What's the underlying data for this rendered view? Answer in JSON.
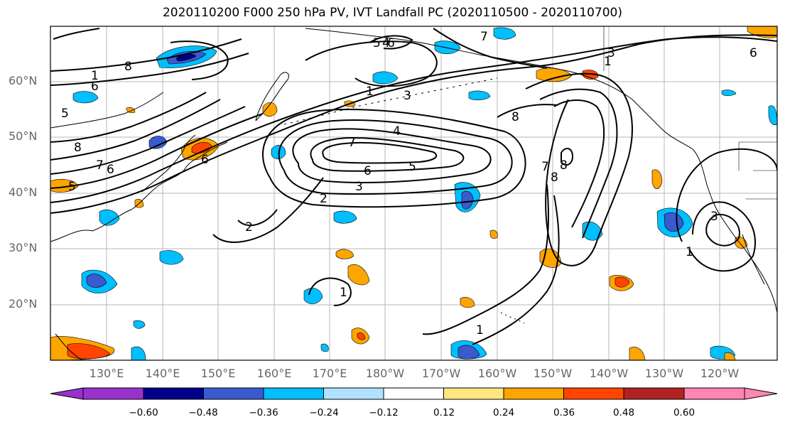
{
  "title": "2020110200 F000 250 hPa PV, IVT Landfall PC (2020110500 - 2020110700)",
  "lat_labels": [
    "60°N",
    "50°N",
    "40°N",
    "30°N",
    "20°N"
  ],
  "lon_labels": [
    "130°E",
    "140°E",
    "150°E",
    "160°E",
    "170°E",
    "180°W",
    "170°W",
    "160°W",
    "150°W",
    "140°W",
    "130°W",
    "120°W"
  ],
  "colorbar": {
    "ticks": [
      "−0.60",
      "−0.48",
      "−0.36",
      "−0.24",
      "−0.12",
      "0.12",
      "0.24",
      "0.36",
      "0.48",
      "0.60"
    ],
    "colors": [
      "#9932cc",
      "#00008b",
      "#3a5bcf",
      "#00bfff",
      "#b0e2ff",
      "#ffffff",
      "#ffe680",
      "#ffa500",
      "#ff4500",
      "#b22222",
      "#ff85b3"
    ]
  },
  "contour_labels": [
    "8",
    "1",
    "6",
    "5",
    "8",
    "7",
    "6",
    "5",
    "1",
    "2",
    "3",
    "4",
    "5",
    "6",
    "7",
    "2",
    "3",
    "4",
    "5",
    "6",
    "7",
    "8",
    "1",
    "3",
    "6",
    "8",
    "7",
    "8",
    "1",
    "3",
    "1",
    "6",
    "1"
  ]
}
